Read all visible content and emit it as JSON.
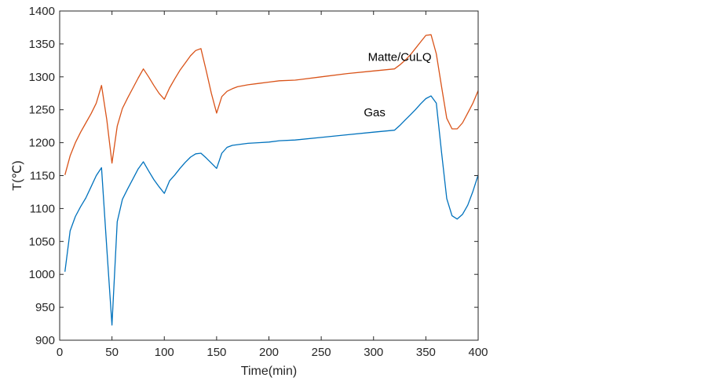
{
  "chart_data": {
    "type": "line",
    "title": "",
    "xlabel": "Time(min)",
    "ylabel": "T(℃)",
    "xlim": [
      0,
      400
    ],
    "ylim": [
      900,
      1400
    ],
    "xticks": [
      0,
      50,
      100,
      150,
      200,
      250,
      300,
      350,
      400
    ],
    "yticks": [
      900,
      950,
      1000,
      1050,
      1100,
      1150,
      1200,
      1250,
      1300,
      1350,
      1400
    ],
    "grid": false,
    "series": [
      {
        "name": "Matte/CuLQ",
        "color": "#d95319",
        "x": [
          5,
          10,
          15,
          20,
          25,
          30,
          35,
          40,
          45,
          50,
          55,
          60,
          65,
          70,
          75,
          80,
          85,
          90,
          95,
          100,
          105,
          110,
          115,
          120,
          125,
          130,
          135,
          140,
          145,
          150,
          155,
          160,
          165,
          170,
          180,
          190,
          200,
          210,
          225,
          250,
          275,
          300,
          320,
          325,
          330,
          335,
          340,
          345,
          350,
          355,
          360,
          365,
          370,
          375,
          380,
          385,
          390,
          395,
          400
        ],
        "y": [
          1151,
          1180,
          1200,
          1216,
          1230,
          1244,
          1260,
          1287,
          1235,
          1169,
          1225,
          1252,
          1268,
          1283,
          1298,
          1312,
          1300,
          1287,
          1275,
          1266,
          1283,
          1297,
          1310,
          1321,
          1332,
          1340,
          1343,
          1310,
          1275,
          1245,
          1270,
          1278,
          1282,
          1285,
          1288,
          1290,
          1292,
          1294,
          1295,
          1300,
          1305,
          1309,
          1312,
          1318,
          1325,
          1333,
          1343,
          1353,
          1363,
          1364,
          1335,
          1285,
          1237,
          1221,
          1221,
          1230,
          1245,
          1260,
          1279
        ]
      },
      {
        "name": "Gas",
        "color": "#0072bd",
        "x": [
          5,
          10,
          15,
          20,
          25,
          30,
          35,
          40,
          45,
          50,
          55,
          60,
          65,
          70,
          75,
          80,
          85,
          90,
          95,
          100,
          105,
          110,
          115,
          120,
          125,
          130,
          135,
          140,
          145,
          150,
          155,
          160,
          165,
          170,
          180,
          190,
          200,
          210,
          225,
          250,
          275,
          300,
          320,
          325,
          330,
          335,
          340,
          345,
          350,
          355,
          360,
          365,
          370,
          375,
          380,
          385,
          390,
          395,
          400
        ],
        "y": [
          1004,
          1066,
          1088,
          1103,
          1116,
          1133,
          1150,
          1162,
          1040,
          923,
          1080,
          1114,
          1130,
          1145,
          1160,
          1171,
          1157,
          1144,
          1133,
          1123,
          1142,
          1151,
          1161,
          1170,
          1178,
          1183,
          1184,
          1177,
          1169,
          1161,
          1184,
          1193,
          1196,
          1197,
          1199,
          1200,
          1201,
          1203,
          1204,
          1208,
          1212,
          1216,
          1219,
          1226,
          1234,
          1242,
          1250,
          1259,
          1267,
          1271,
          1260,
          1185,
          1115,
          1089,
          1084,
          1091,
          1105,
          1126,
          1151
        ]
      }
    ],
    "annotations": [
      {
        "text": "Matte/CuLQ",
        "x": 325,
        "y": 1324
      },
      {
        "text": "Gas",
        "x": 301,
        "y": 1240
      }
    ]
  }
}
